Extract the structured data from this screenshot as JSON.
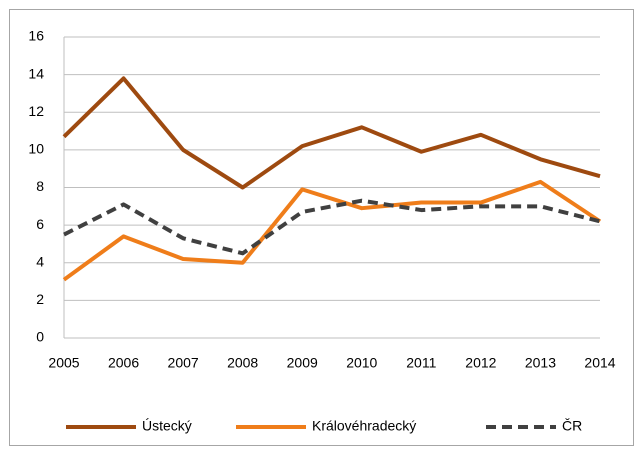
{
  "chart_data": {
    "type": "line",
    "categories": [
      "2005",
      "2006",
      "2007",
      "2008",
      "2009",
      "2010",
      "2011",
      "2012",
      "2013",
      "2014"
    ],
    "series": [
      {
        "name": "Ústecký",
        "color": "#9e4a10",
        "values": [
          10.7,
          13.8,
          10.0,
          8.0,
          10.2,
          11.2,
          9.9,
          10.8,
          9.5,
          8.6
        ]
      },
      {
        "name": "Královéhradecký",
        "color": "#ef7d1a",
        "values": [
          3.1,
          5.4,
          4.2,
          4.0,
          7.9,
          6.9,
          7.2,
          7.2,
          8.3,
          6.2
        ]
      },
      {
        "name": "ČR",
        "color": "#404040",
        "dashed": true,
        "values": [
          5.5,
          7.1,
          5.3,
          4.5,
          6.7,
          7.3,
          6.8,
          7.0,
          7.0,
          6.2
        ]
      }
    ],
    "ylim": [
      0,
      16
    ],
    "yticks": [
      0,
      2,
      4,
      6,
      8,
      10,
      12,
      14,
      16
    ],
    "grid": true,
    "legend": "bottom"
  }
}
